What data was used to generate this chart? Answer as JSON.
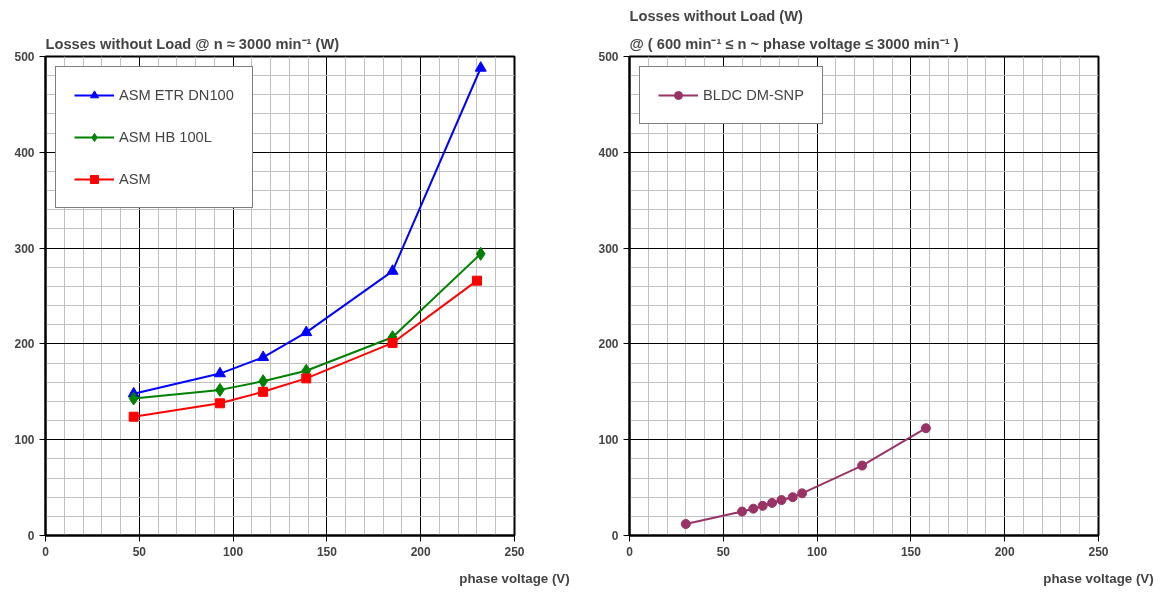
{
  "chart_data": [
    {
      "type": "line",
      "title": "Losses without Load  @ n ≈ 3000 min⁻¹  (W)",
      "xlabel": "phase voltage (V)",
      "xlim": [
        0,
        250
      ],
      "ylim": [
        0,
        500
      ],
      "xticks": [
        0,
        50,
        100,
        150,
        200,
        250
      ],
      "yticks": [
        0,
        100,
        200,
        300,
        400,
        500
      ],
      "grid": true,
      "legend": "top left",
      "line_style": "solid",
      "series": [
        {
          "name": "ASM ETR DN100",
          "color": "#0000ff",
          "marker": "triangle",
          "x": [
            47,
            93,
            116,
            139,
            185,
            232
          ],
          "values": [
            148,
            169,
            186,
            212,
            276,
            488
          ]
        },
        {
          "name": "ASM HB 100L",
          "color": "#008000",
          "marker": "diamond",
          "x": [
            47,
            93,
            116,
            139,
            185,
            232
          ],
          "values": [
            143,
            152,
            161,
            172,
            207,
            294
          ]
        },
        {
          "name": "ASM",
          "color": "#ff0000",
          "marker": "square",
          "x": [
            47,
            93,
            116,
            139,
            185,
            230
          ],
          "values": [
            124,
            138,
            150,
            164,
            201,
            266
          ]
        }
      ]
    },
    {
      "type": "line",
      "title": "Losses without Load (W)",
      "subtitle": "@ ( 600 min⁻¹ ≤ n ~ phase voltage ≤ 3000 min⁻¹ )",
      "xlabel": "phase voltage (V)",
      "xlim": [
        0,
        250
      ],
      "ylim": [
        0,
        500
      ],
      "xticks": [
        0,
        50,
        100,
        150,
        200,
        250
      ],
      "yticks": [
        0,
        100,
        200,
        300,
        400,
        500
      ],
      "grid": true,
      "legend": "top left",
      "line_style": "solid",
      "series": [
        {
          "name": "BLDC DM-SNP",
          "color": "#993366",
          "marker": "circle",
          "x": [
            30,
            60,
            66,
            71,
            76,
            81,
            87,
            92,
            124,
            158
          ],
          "values": [
            12,
            25,
            28,
            31,
            34,
            37,
            40,
            44,
            73,
            112
          ]
        }
      ]
    }
  ]
}
